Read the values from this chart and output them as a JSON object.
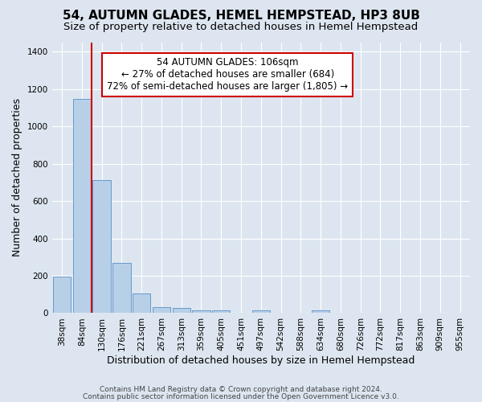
{
  "title": "54, AUTUMN GLADES, HEMEL HEMPSTEAD, HP3 8UB",
  "subtitle": "Size of property relative to detached houses in Hemel Hempstead",
  "xlabel": "Distribution of detached houses by size in Hemel Hempstead",
  "ylabel": "Number of detached properties",
  "footer_line1": "Contains HM Land Registry data © Crown copyright and database right 2024.",
  "footer_line2": "Contains public sector information licensed under the Open Government Licence v3.0.",
  "bar_labels": [
    "38sqm",
    "84sqm",
    "130sqm",
    "176sqm",
    "221sqm",
    "267sqm",
    "313sqm",
    "359sqm",
    "405sqm",
    "451sqm",
    "497sqm",
    "542sqm",
    "588sqm",
    "634sqm",
    "680sqm",
    "726sqm",
    "772sqm",
    "817sqm",
    "863sqm",
    "909sqm",
    "955sqm"
  ],
  "bar_values": [
    197,
    1148,
    714,
    267,
    106,
    34,
    28,
    15,
    13,
    0,
    16,
    0,
    0,
    16,
    0,
    0,
    0,
    0,
    0,
    0,
    0
  ],
  "bar_color": "#b8cfe8",
  "bar_edgecolor": "#6699cc",
  "ylim": [
    0,
    1450
  ],
  "yticks": [
    0,
    200,
    400,
    600,
    800,
    1000,
    1200,
    1400
  ],
  "annotation_line1": "54 AUTUMN GLADES: 106sqm",
  "annotation_line2": "← 27% of detached houses are smaller (684)",
  "annotation_line3": "72% of semi-detached houses are larger (1,805) →",
  "vline_x_index": 1.5,
  "bg_color": "#dde6f0",
  "grid_color": "#ffffff",
  "annotation_box_color": "#ffffff",
  "annotation_box_edgecolor": "#cc0000",
  "title_fontsize": 11,
  "subtitle_fontsize": 9.5,
  "axis_label_fontsize": 9,
  "tick_fontsize": 7.5,
  "annotation_fontsize": 8.5,
  "footer_fontsize": 6.5
}
